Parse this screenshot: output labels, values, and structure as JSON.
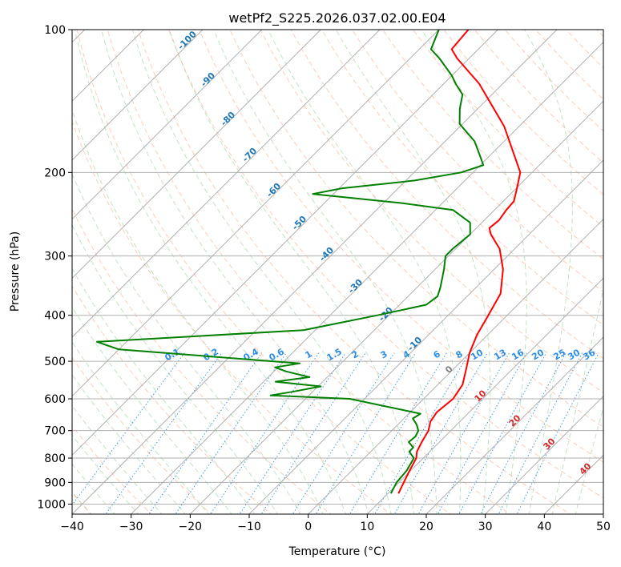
{
  "chart_data": {
    "type": "line",
    "title": "wetPf2_S225.2026.037.02.00.E04",
    "xlabel": "Temperature (°C)",
    "ylabel": "Pressure (hPa)",
    "xlim": [
      -40,
      50
    ],
    "ylim": [
      1050,
      100
    ],
    "y_scale": "log",
    "x_ticks": [
      "−40",
      "−30",
      "−20",
      "−10",
      "0",
      "10",
      "20",
      "30",
      "40",
      "50"
    ],
    "y_ticks": [
      "100",
      "200",
      "300",
      "400",
      "500",
      "600",
      "700",
      "800",
      "900",
      "1000"
    ],
    "grid": true,
    "skew": true,
    "series": [
      {
        "name": "",
        "color": "#ff0000",
        "points": [
          [
            11.8,
            950
          ],
          [
            10.8,
            900
          ],
          [
            9.8,
            850
          ],
          [
            8.8,
            800
          ],
          [
            7.8,
            775
          ],
          [
            7.0,
            740
          ],
          [
            6.2,
            700
          ],
          [
            5.0,
            670
          ],
          [
            4.5,
            640
          ],
          [
            5.0,
            600
          ],
          [
            4.2,
            560
          ],
          [
            2.2,
            520
          ],
          [
            0.0,
            480
          ],
          [
            -1.8,
            440
          ],
          [
            -3.2,
            400
          ],
          [
            -4.8,
            360
          ],
          [
            -8.5,
            320
          ],
          [
            -12.5,
            290
          ],
          [
            -16.5,
            270
          ],
          [
            -17.8,
            262
          ],
          [
            -17.5,
            252
          ],
          [
            -18.0,
            240
          ],
          [
            -18.2,
            230
          ],
          [
            -20.0,
            215
          ],
          [
            -22.0,
            200
          ],
          [
            -32.5,
            160
          ],
          [
            -44.0,
            130
          ],
          [
            -52.0,
            115
          ],
          [
            -54.5,
            110
          ],
          [
            -55.0,
            100
          ]
        ]
      },
      {
        "name": "",
        "color": "#008000",
        "points": [
          [
            10.5,
            950
          ],
          [
            9.6,
            900
          ],
          [
            9.3,
            850
          ],
          [
            8.4,
            800
          ],
          [
            6.5,
            775
          ],
          [
            6.5,
            760
          ],
          [
            4.8,
            740
          ],
          [
            5.0,
            720
          ],
          [
            4.5,
            700
          ],
          [
            3.2,
            680
          ],
          [
            1.5,
            660
          ],
          [
            2.0,
            645
          ],
          [
            -12.5,
            600
          ],
          [
            -26.5,
            590
          ],
          [
            -23.5,
            580
          ],
          [
            -19.5,
            565
          ],
          [
            -28.0,
            552
          ],
          [
            -23.0,
            540
          ],
          [
            -28.0,
            525
          ],
          [
            -30.5,
            515
          ],
          [
            -27.0,
            505
          ],
          [
            -60.0,
            472
          ],
          [
            -65.0,
            455
          ],
          [
            -32.0,
            430
          ],
          [
            -22.0,
            400
          ],
          [
            -15.5,
            380
          ],
          [
            -15.0,
            365
          ],
          [
            -16.0,
            350
          ],
          [
            -18.5,
            320
          ],
          [
            -20.5,
            300
          ],
          [
            -20.5,
            290
          ],
          [
            -20.0,
            270
          ],
          [
            -22.0,
            255
          ],
          [
            -27.0,
            240
          ],
          [
            -37.0,
            232
          ],
          [
            -53.5,
            222
          ],
          [
            -49.5,
            216
          ],
          [
            -38.5,
            208
          ],
          [
            -32.0,
            200
          ],
          [
            -29.5,
            193
          ],
          [
            -31.5,
            185
          ],
          [
            -35.0,
            172
          ],
          [
            -40.5,
            158
          ],
          [
            -43.0,
            147
          ],
          [
            -45.0,
            137
          ],
          [
            -48.0,
            130
          ],
          [
            -50.0,
            125
          ],
          [
            -55.0,
            115
          ],
          [
            -58.0,
            110
          ],
          [
            -60.0,
            100
          ]
        ]
      }
    ],
    "dry_adiabat_labels": [
      "-100",
      "-90",
      "-80",
      "-70",
      "-60",
      "-50",
      "-40",
      "-30",
      "-20",
      "-10"
    ],
    "mixing_ratio_labels": [
      "0.1",
      "0.2",
      "0.4",
      "0.6",
      "1",
      "1.5",
      "2",
      "3",
      "4",
      "6",
      "8",
      "10",
      "13",
      "16",
      "20",
      "25",
      "30",
      "36"
    ],
    "moist_adiabat_labels": [
      "0",
      "10",
      "20",
      "30",
      "40"
    ]
  }
}
